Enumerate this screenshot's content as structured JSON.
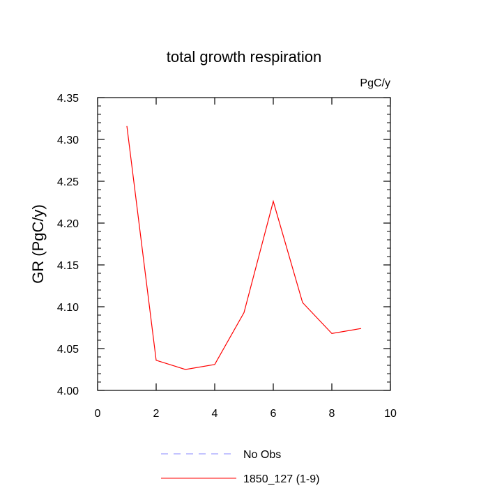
{
  "chart_data": {
    "type": "line",
    "title": "total growth respiration",
    "units_label": "PgC/y",
    "xlabel": "",
    "ylabel": "GR  (PgC/y)",
    "xlim": [
      0,
      10
    ],
    "ylim": [
      4.0,
      4.35
    ],
    "xticks": [
      0,
      2,
      4,
      6,
      8,
      10
    ],
    "xtick_labels": [
      "0",
      "2",
      "4",
      "6",
      "8",
      "10"
    ],
    "yticks": [
      4.0,
      4.05,
      4.1,
      4.15,
      4.2,
      4.25,
      4.3,
      4.35
    ],
    "ytick_labels": [
      "4.00",
      "4.05",
      "4.10",
      "4.15",
      "4.20",
      "4.25",
      "4.30",
      "4.35"
    ],
    "grid": false,
    "series": [
      {
        "name": "1850_127 (1-9)",
        "color": "#ff0000",
        "style": "solid",
        "x": [
          1,
          2,
          3,
          4,
          5,
          6,
          7,
          8,
          9
        ],
        "values": [
          4.316,
          4.036,
          4.025,
          4.031,
          4.093,
          4.226,
          4.105,
          4.068,
          4.074
        ]
      }
    ],
    "legend": [
      {
        "label": "No Obs",
        "color": "#8888ff",
        "style": "dashed"
      },
      {
        "label": "1850_127 (1-9)",
        "color": "#ff0000",
        "style": "solid"
      }
    ],
    "legend_position": "bottom-center"
  }
}
